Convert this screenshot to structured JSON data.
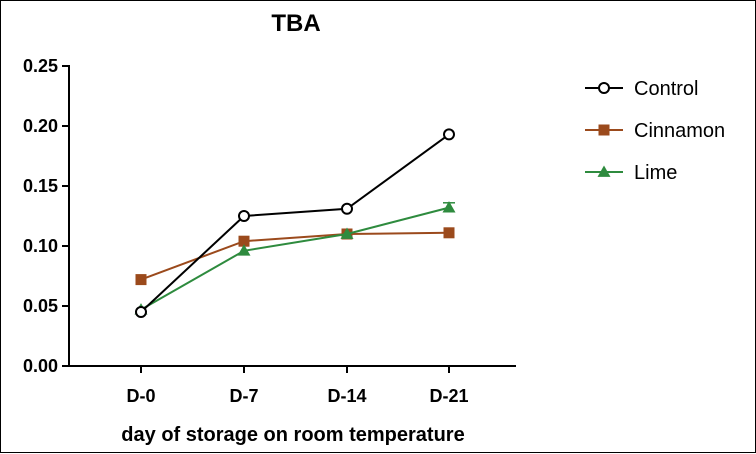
{
  "chart_data": {
    "type": "line",
    "title": "TBA",
    "xlabel": "day of storage on room temperature",
    "ylabel": "",
    "categories": [
      "D-0",
      "D-7",
      "D-14",
      "D-21"
    ],
    "ylim": [
      0,
      0.25
    ],
    "yticks": [
      "0.00",
      "0.05",
      "0.10",
      "0.15",
      "0.20",
      "0.25"
    ],
    "legend_position": "right",
    "series": [
      {
        "name": "Control",
        "values": [
          0.045,
          0.125,
          0.131,
          0.193
        ],
        "color": "#000000",
        "marker": "open-circle"
      },
      {
        "name": "Cinnamon",
        "values": [
          0.072,
          0.104,
          0.11,
          0.111
        ],
        "color": "#9b4a1c",
        "marker": "square"
      },
      {
        "name": "Lime",
        "values": [
          0.047,
          0.096,
          0.11,
          0.132
        ],
        "color": "#2e8b3e",
        "marker": "triangle",
        "errors": [
          0,
          0,
          0,
          0.004
        ]
      }
    ]
  }
}
